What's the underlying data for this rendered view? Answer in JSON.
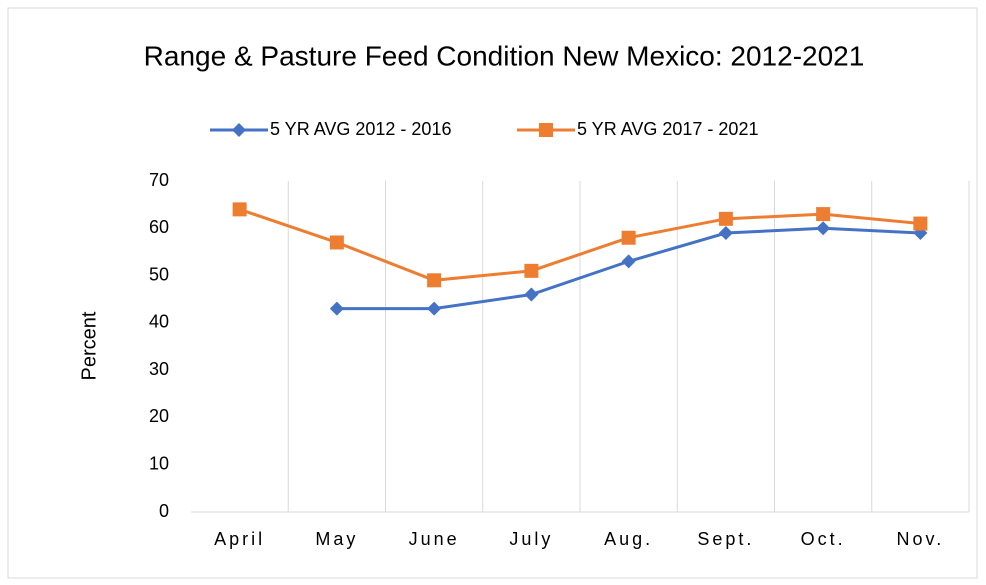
{
  "chart_data": {
    "type": "line",
    "title": "Range & Pasture Feed Condition New Mexico: 2012-2021",
    "y_label": "Percent",
    "categories": [
      "April",
      "May",
      "June",
      "July",
      "Aug.",
      "Sept.",
      "Oct.",
      "Nov."
    ],
    "series": [
      {
        "name": "5 YR AVG 2012 - 2016",
        "color": "#4472c4",
        "marker": "diamond",
        "values": [
          null,
          43,
          43,
          46,
          53,
          59,
          60,
          59
        ]
      },
      {
        "name": "5 YR AVG 2017 - 2021",
        "color": "#ed7d31",
        "marker": "square",
        "values": [
          64,
          57,
          49,
          51,
          58,
          62,
          63,
          61
        ]
      }
    ],
    "ylim": [
      0,
      70
    ],
    "yticks": [
      0,
      10,
      20,
      30,
      40,
      50,
      60,
      70
    ],
    "grid": "x",
    "legend": "top"
  }
}
